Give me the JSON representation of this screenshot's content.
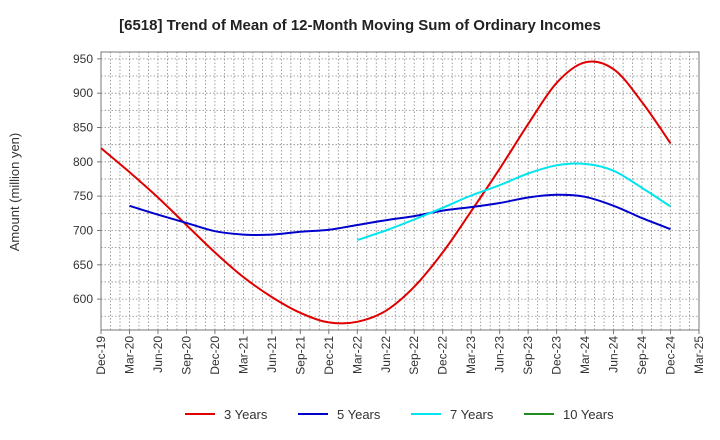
{
  "chart_data": {
    "type": "line",
    "title": "[6518]  Trend of Mean of 12-Month Moving Sum of Ordinary Incomes",
    "xlabel": "",
    "ylabel": "Amount (million yen)",
    "ylim": [
      555,
      960
    ],
    "yticks": [
      600,
      650,
      700,
      750,
      800,
      850,
      900,
      950
    ],
    "categories": [
      "Dec-19",
      "Mar-20",
      "Jun-20",
      "Sep-20",
      "Dec-20",
      "Mar-21",
      "Jun-21",
      "Sep-21",
      "Dec-21",
      "Mar-22",
      "Jun-22",
      "Sep-22",
      "Dec-22",
      "Mar-23",
      "Jun-23",
      "Sep-23",
      "Dec-23",
      "Mar-24",
      "Jun-24",
      "Sep-24",
      "Dec-24",
      "Mar-25"
    ],
    "grid": true,
    "legend_position": "bottom",
    "series": [
      {
        "name": "3 Years",
        "color": "#e00000",
        "values": [
          820,
          785,
          748,
          708,
          668,
          632,
          603,
          580,
          566,
          567,
          583,
          618,
          668,
          728,
          790,
          855,
          915,
          945,
          935,
          887,
          827,
          null
        ]
      },
      {
        "name": "5 Years",
        "color": "#0000cc",
        "values": [
          null,
          736,
          723,
          711,
          699,
          694,
          694,
          698,
          701,
          708,
          715,
          721,
          729,
          734,
          740,
          748,
          752,
          749,
          736,
          718,
          702,
          null
        ]
      },
      {
        "name": "7 Years",
        "color": "#00e5ee",
        "values": [
          null,
          null,
          null,
          null,
          null,
          null,
          null,
          null,
          null,
          686,
          700,
          716,
          733,
          751,
          766,
          783,
          795,
          797,
          787,
          762,
          735,
          null
        ]
      },
      {
        "name": "10 Years",
        "color": "#228b22",
        "values": [
          null,
          null,
          null,
          null,
          null,
          null,
          null,
          null,
          null,
          null,
          null,
          null,
          null,
          null,
          null,
          null,
          null,
          null,
          null,
          null,
          null,
          null
        ]
      }
    ]
  }
}
